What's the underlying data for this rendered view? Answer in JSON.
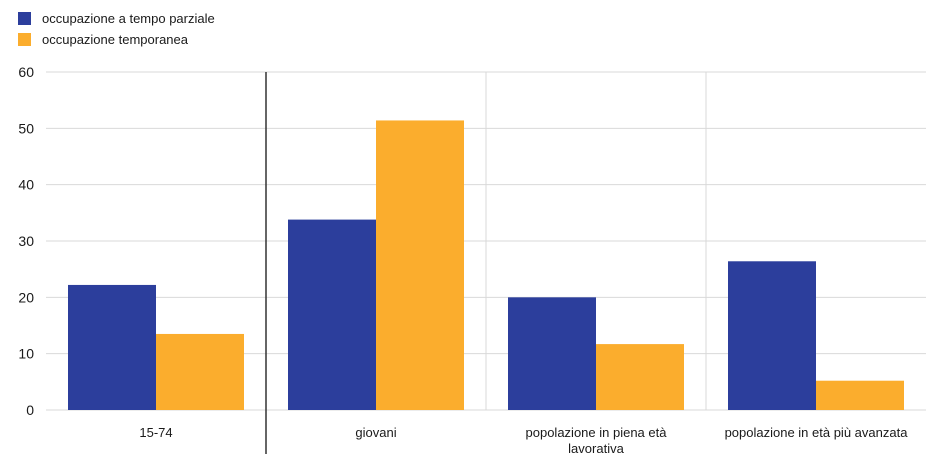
{
  "colors": {
    "series_1": "#2c3e9c",
    "series_2": "#fbad2d",
    "grid": "#d9d9d9",
    "separator": "#333333"
  },
  "chart_data": {
    "type": "bar",
    "categories": [
      "15-74",
      "giovani",
      "popolazione in piena età lavorativa",
      "popolazione in età più avanzata"
    ],
    "category_lines": [
      [
        "15-74"
      ],
      [
        "giovani"
      ],
      [
        "popolazione in piena età",
        "lavorativa"
      ],
      [
        "popolazione in età più avanzata"
      ]
    ],
    "series": [
      {
        "name": "occupazione a tempo parziale",
        "values": [
          22.2,
          33.8,
          20.0,
          26.4
        ]
      },
      {
        "name": "occupazione temporanea",
        "values": [
          13.5,
          51.4,
          11.7,
          5.2
        ]
      }
    ],
    "title": "",
    "xlabel": "",
    "ylabel": "",
    "ylim": [
      0,
      60
    ],
    "yticks": [
      0,
      10,
      20,
      30,
      40,
      50,
      60
    ],
    "grid": true,
    "legend_position": "top-left"
  }
}
